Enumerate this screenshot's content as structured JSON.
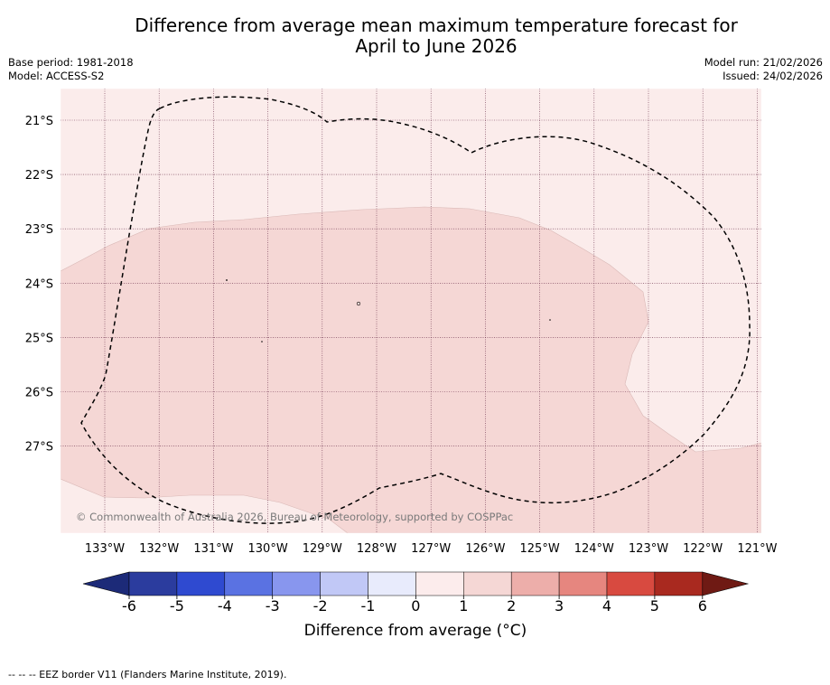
{
  "title": {
    "line1": "Difference from average mean maximum temperature forecast for",
    "line2": "April to June 2026"
  },
  "meta_left": {
    "base_period": "Base period: 1981-2018",
    "model": "Model: ACCESS-S2"
  },
  "meta_right": {
    "model_run": "Model run: 21/02/2026",
    "issued": "Issued: 24/02/2026"
  },
  "map": {
    "lat_labels": [
      "21°S",
      "22°S",
      "23°S",
      "24°S",
      "25°S",
      "26°S",
      "27°S"
    ],
    "lon_labels": [
      "133°W",
      "132°W",
      "131°W",
      "130°W",
      "129°W",
      "128°W",
      "127°W",
      "126°W",
      "125°W",
      "124°W",
      "123°W",
      "122°W",
      "121°W"
    ],
    "credit": "© Commonwealth of Australia 2026, Bureau of Meteorology, supported by COSPPac",
    "colors": {
      "anomaly_0_1": "#fbeceb",
      "anomaly_1_2": "#f5d7d5",
      "gridline": "#6a2f4a",
      "eez_border": "#000000"
    }
  },
  "colorbar": {
    "tick_labels": [
      "-6",
      "-5",
      "-4",
      "-3",
      "-2",
      "-1",
      "0",
      "1",
      "2",
      "3",
      "4",
      "5",
      "6"
    ],
    "colors": [
      "#2b3c9e",
      "#2f4ad0",
      "#5a72e2",
      "#8896ee",
      "#c1c8f6",
      "#e8ebfc",
      "#fcecec",
      "#f5d7d5",
      "#edaeaa",
      "#e6867f",
      "#d84a40",
      "#a9291f"
    ],
    "extend_low_color": "#1c2a78",
    "extend_high_color": "#6f1a14",
    "label": "Difference from average (°C)"
  },
  "footnote": "--  --  -- EEZ border V11 (Flanders Marine Institute, 2019)."
}
